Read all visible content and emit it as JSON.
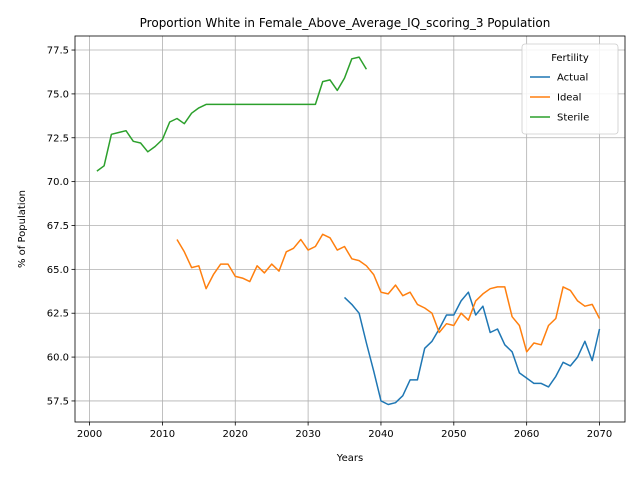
{
  "chart_data": {
    "type": "line",
    "title": "Proportion White in Female_Above_Average_IQ_scoring_3 Population",
    "xlabel": "Years",
    "ylabel": "% of Population",
    "xlim": [
      1998,
      2073.5
    ],
    "ylim": [
      56.3,
      78.3
    ],
    "xticks": [
      2000,
      2010,
      2020,
      2030,
      2040,
      2050,
      2060,
      2070
    ],
    "yticks": [
      57.5,
      60.0,
      62.5,
      65.0,
      67.5,
      70.0,
      72.5,
      75.0,
      77.5
    ],
    "ytick_labels": [
      "57.5",
      "60.0",
      "62.5",
      "65.0",
      "67.5",
      "70.0",
      "72.5",
      "75.0",
      "77.5"
    ],
    "grid": true,
    "legend": {
      "title": "Fertility",
      "position": "top-right"
    },
    "series": [
      {
        "name": "Actual",
        "color": "#1f77b4",
        "x": [
          2035,
          2036,
          2037,
          2038,
          2039,
          2040,
          2041,
          2042,
          2043,
          2044,
          2045,
          2046,
          2047,
          2048,
          2049,
          2050,
          2051,
          2052,
          2053,
          2054,
          2055,
          2056,
          2057,
          2058,
          2059,
          2060,
          2061,
          2062,
          2063,
          2064,
          2065,
          2066,
          2067,
          2068,
          2069,
          2070
        ],
        "y": [
          63.4,
          63.0,
          62.5,
          60.8,
          59.2,
          57.5,
          57.3,
          57.4,
          57.8,
          58.7,
          58.7,
          60.5,
          60.9,
          61.6,
          62.4,
          62.4,
          63.2,
          63.7,
          62.4,
          62.9,
          61.4,
          61.6,
          60.7,
          60.3,
          59.1,
          58.8,
          58.5,
          58.5,
          58.3,
          58.9,
          59.7,
          59.5,
          60.0,
          60.9,
          59.8,
          61.6
        ]
      },
      {
        "name": "Ideal",
        "color": "#ff7f0e",
        "x": [
          2012,
          2013,
          2014,
          2015,
          2016,
          2017,
          2018,
          2019,
          2020,
          2021,
          2022,
          2023,
          2024,
          2025,
          2026,
          2027,
          2028,
          2029,
          2030,
          2031,
          2032,
          2033,
          2034,
          2035,
          2036,
          2037,
          2038,
          2039,
          2040,
          2041,
          2042,
          2043,
          2044,
          2045,
          2046,
          2047,
          2048,
          2049,
          2050,
          2051,
          2052,
          2053,
          2054,
          2055,
          2056,
          2057,
          2058,
          2059,
          2060,
          2061,
          2062,
          2063,
          2064,
          2065,
          2066,
          2067,
          2068,
          2069,
          2070
        ],
        "y": [
          66.7,
          66.0,
          65.1,
          65.2,
          63.9,
          64.7,
          65.3,
          65.3,
          64.6,
          64.5,
          64.3,
          65.2,
          64.8,
          65.3,
          64.9,
          66.0,
          66.2,
          66.7,
          66.1,
          66.3,
          67.0,
          66.8,
          66.1,
          66.3,
          65.6,
          65.5,
          65.2,
          64.7,
          63.7,
          63.6,
          64.1,
          63.5,
          63.7,
          63.0,
          62.8,
          62.5,
          61.4,
          61.9,
          61.8,
          62.5,
          62.1,
          63.2,
          63.6,
          63.9,
          64.0,
          64.0,
          62.3,
          61.8,
          60.3,
          60.8,
          60.7,
          61.8,
          62.2,
          64.0,
          63.8,
          63.2,
          62.9,
          63.0,
          62.2
        ]
      },
      {
        "name": "Sterile",
        "color": "#2ca02c",
        "x": [
          2001,
          2002,
          2003,
          2004,
          2005,
          2006,
          2007,
          2008,
          2009,
          2010,
          2011,
          2012,
          2013,
          2014,
          2015,
          2016,
          2017,
          2018,
          2019,
          2020,
          2021,
          2022,
          2023,
          2024,
          2025,
          2026,
          2027,
          2028,
          2029,
          2030,
          2031,
          2032,
          2033,
          2034,
          2035,
          2036,
          2037,
          2038
        ],
        "y": [
          70.6,
          70.9,
          72.7,
          72.8,
          72.9,
          72.3,
          72.2,
          71.7,
          72.0,
          72.4,
          73.4,
          73.6,
          73.3,
          73.9,
          74.2,
          74.4,
          74.4,
          74.4,
          74.4,
          74.4,
          74.4,
          74.4,
          74.4,
          74.4,
          74.4,
          74.4,
          74.4,
          74.4,
          74.4,
          74.4,
          74.4,
          75.7,
          75.8,
          75.2,
          75.9,
          77.0,
          77.1,
          76.4
        ]
      }
    ]
  }
}
